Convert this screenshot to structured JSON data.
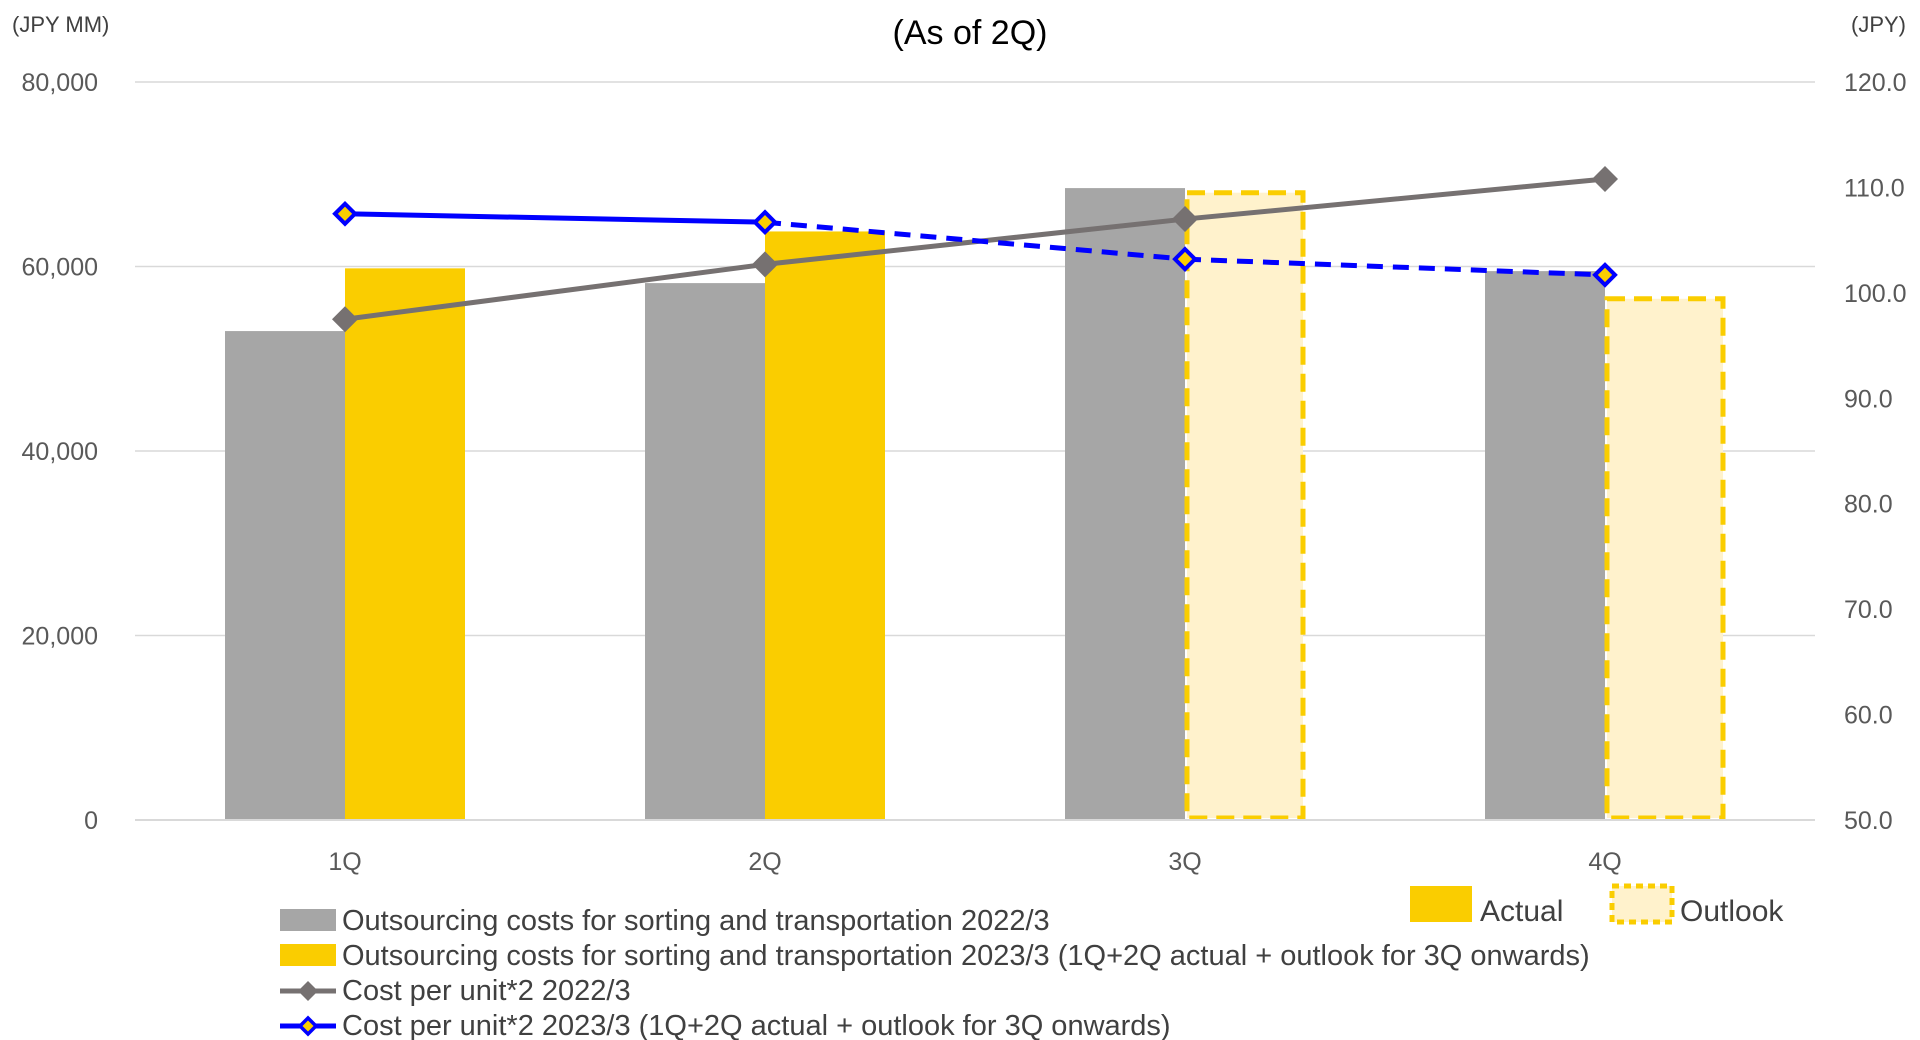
{
  "chart_data": {
    "type": "bar",
    "title": "(As of 2Q)",
    "y_left_unit": "(JPY MM)",
    "y_right_unit": "(JPY)",
    "categories": [
      "1Q",
      "2Q",
      "3Q",
      "4Q"
    ],
    "y_left": {
      "min": 0,
      "max": 80000,
      "step": 20000,
      "ticks": [
        "0",
        "20,000",
        "40,000",
        "60,000",
        "80,000"
      ]
    },
    "y_right": {
      "min": 50,
      "max": 120,
      "step": 10,
      "ticks": [
        "50.0",
        "60.0",
        "70.0",
        "80.0",
        "90.0",
        "100.0",
        "110.0",
        "120.0"
      ]
    },
    "grid": true,
    "bars": [
      {
        "name": "Outsourcing costs for sorting and transportation 2022/3",
        "color": "#A6A6A6",
        "values": [
          53000,
          58200,
          68500,
          59500
        ]
      },
      {
        "name": "Outsourcing costs for sorting and transportation 2023/3 (1Q+2Q actual + outlook for 3Q onwards)",
        "color": "#FACD00",
        "outlook_fill": "#FFF2CC",
        "values": [
          59800,
          63800,
          68000,
          56500
        ],
        "status": [
          "actual",
          "actual",
          "outlook",
          "outlook"
        ]
      }
    ],
    "lines": [
      {
        "name": "Cost per unit*2  2022/3",
        "color": "#767171",
        "marker": "diamond",
        "values": [
          97.5,
          102.7,
          107.0,
          110.8
        ]
      },
      {
        "name": "Cost per unit*2  2023/3 (1Q+2Q actual + outlook for 3Q onwards)",
        "color": "#0000FF",
        "marker": "diamond",
        "marker_fill": "#FACD00",
        "values": [
          107.5,
          106.7,
          103.2,
          101.7
        ],
        "status": [
          "actual",
          "actual",
          "outlook",
          "outlook"
        ]
      }
    ],
    "status_legend": {
      "actual": "Actual",
      "outlook": "Outlook"
    }
  }
}
